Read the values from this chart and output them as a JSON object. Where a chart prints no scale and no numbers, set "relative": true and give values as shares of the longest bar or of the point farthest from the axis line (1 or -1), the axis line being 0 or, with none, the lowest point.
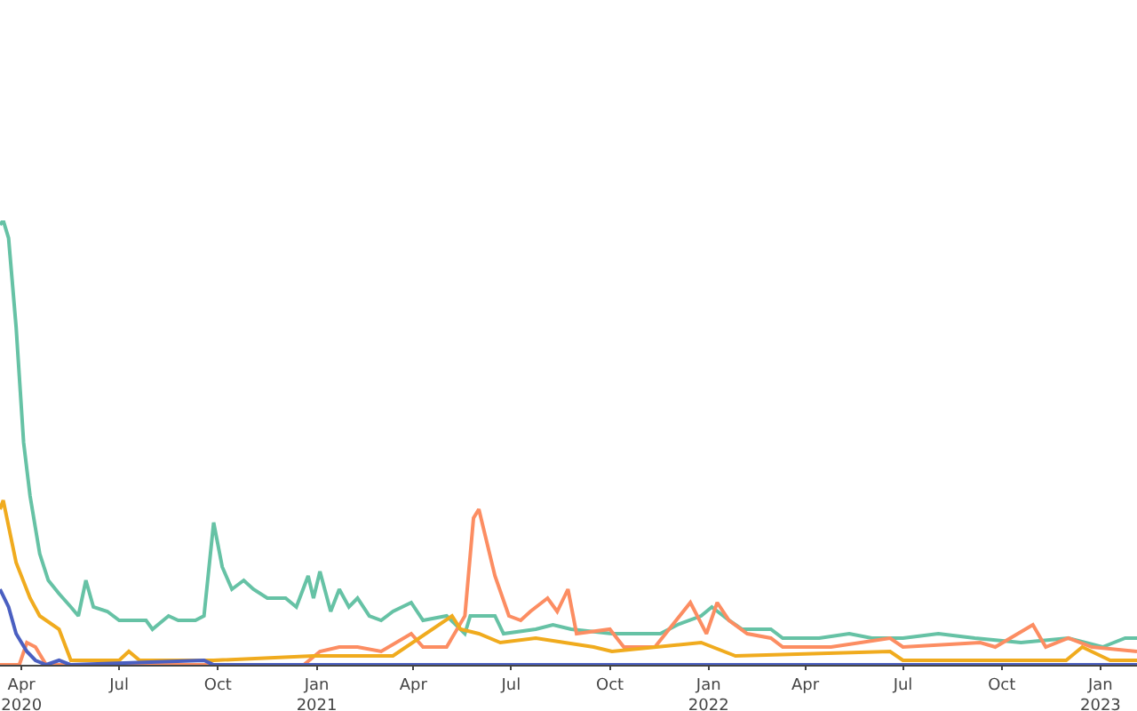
{
  "chart_data": {
    "type": "line",
    "relative": true,
    "xlim": [
      "2020-03-12",
      "2023-02-04"
    ],
    "xticks": [
      {
        "value": "2020-04-01",
        "label": "Apr\n2020"
      },
      {
        "value": "2020-07-01",
        "label": "Jul"
      },
      {
        "value": "2020-10-01",
        "label": "Oct"
      },
      {
        "value": "2021-01-01",
        "label": "Jan\n2021"
      },
      {
        "value": "2021-04-01",
        "label": "Apr"
      },
      {
        "value": "2021-07-01",
        "label": "Jul"
      },
      {
        "value": "2021-10-01",
        "label": "Oct"
      },
      {
        "value": "2022-01-01",
        "label": "Jan\n2022"
      },
      {
        "value": "2022-04-01",
        "label": "Apr"
      },
      {
        "value": "2022-07-01",
        "label": "Jul"
      },
      {
        "value": "2022-10-01",
        "label": "Oct"
      },
      {
        "value": "2023-01-01",
        "label": "Jan\n2023"
      }
    ],
    "series": [
      {
        "color": "#66c2a5",
        "x": [
          "2020-03-12",
          "2020-03-15",
          "2020-03-20",
          "2020-03-27",
          "2020-04-03",
          "2020-04-09",
          "2020-04-18",
          "2020-04-26",
          "2020-05-06",
          "2020-05-17",
          "2020-05-24",
          "2020-05-31",
          "2020-06-07",
          "2020-06-20",
          "2020-07-01",
          "2020-07-14",
          "2020-07-26",
          "2020-08-01",
          "2020-08-16",
          "2020-08-25",
          "2020-09-10",
          "2020-09-18",
          "2020-09-27",
          "2020-10-05",
          "2020-10-14",
          "2020-10-25",
          "2020-11-03",
          "2020-11-16",
          "2020-12-03",
          "2020-12-13",
          "2020-12-24",
          "2020-12-29",
          "2021-01-04",
          "2021-01-14",
          "2021-01-22",
          "2021-01-31",
          "2021-02-08",
          "2021-02-19",
          "2021-03-02",
          "2021-03-13",
          "2021-03-30",
          "2021-04-10",
          "2021-05-02",
          "2021-05-19",
          "2021-05-24",
          "2021-06-16",
          "2021-06-24",
          "2021-07-24",
          "2021-08-09",
          "2021-08-26",
          "2021-10-03",
          "2021-11-17",
          "2021-12-03",
          "2021-12-25",
          "2022-01-04",
          "2022-01-20",
          "2022-02-01",
          "2022-02-28",
          "2022-03-11",
          "2022-03-28",
          "2022-04-14",
          "2022-05-12",
          "2022-06-02",
          "2022-07-01",
          "2022-08-03",
          "2022-09-06",
          "2022-10-19",
          "2022-12-02",
          "2023-01-03",
          "2023-01-24",
          "2023-02-04"
        ],
        "values": [
          0.99,
          1,
          0.96,
          0.76,
          0.5,
          0.38,
          0.25,
          0.19,
          0.16,
          0.13,
          0.11,
          0.19,
          0.13,
          0.12,
          0.1,
          0.1,
          0.1,
          0.08,
          0.11,
          0.1,
          0.1,
          0.11,
          0.32,
          0.22,
          0.17,
          0.19,
          0.17,
          0.15,
          0.15,
          0.13,
          0.2,
          0.15,
          0.21,
          0.12,
          0.17,
          0.13,
          0.15,
          0.11,
          0.1,
          0.12,
          0.14,
          0.1,
          0.11,
          0.07,
          0.11,
          0.11,
          0.07,
          0.08,
          0.09,
          0.08,
          0.07,
          0.07,
          0.09,
          0.11,
          0.13,
          0.1,
          0.08,
          0.08,
          0.06,
          0.06,
          0.06,
          0.07,
          0.06,
          0.06,
          0.07,
          0.06,
          0.05,
          0.06,
          0.04,
          0.06,
          0.06
        ]
      },
      {
        "color": "#fc8d62",
        "x": [
          "2020-03-12",
          "2020-03-30",
          "2020-04-06",
          "2020-04-14",
          "2020-04-24",
          "2020-12-20",
          "2021-01-04",
          "2021-01-22",
          "2021-02-08",
          "2021-03-02",
          "2021-03-30",
          "2021-04-10",
          "2021-05-02",
          "2021-05-19",
          "2021-05-27",
          "2021-06-01",
          "2021-06-16",
          "2021-06-29",
          "2021-07-10",
          "2021-07-19",
          "2021-08-04",
          "2021-08-13",
          "2021-08-23",
          "2021-08-31",
          "2021-10-01",
          "2021-10-14",
          "2021-11-12",
          "2021-12-15",
          "2021-12-30",
          "2022-01-09",
          "2022-01-20",
          "2022-02-06",
          "2022-02-28",
          "2022-03-11",
          "2022-04-25",
          "2022-06-19",
          "2022-07-01",
          "2022-09-11",
          "2022-09-25",
          "2022-10-30",
          "2022-11-11",
          "2022-12-02",
          "2022-12-24",
          "2023-02-04"
        ],
        "values": [
          0,
          0,
          0.05,
          0.04,
          0,
          0,
          0.03,
          0.04,
          0.04,
          0.03,
          0.07,
          0.04,
          0.04,
          0.11,
          0.33,
          0.35,
          0.2,
          0.11,
          0.1,
          0.12,
          0.15,
          0.12,
          0.17,
          0.07,
          0.08,
          0.04,
          0.04,
          0.14,
          0.07,
          0.14,
          0.1,
          0.07,
          0.06,
          0.04,
          0.04,
          0.06,
          0.04,
          0.05,
          0.04,
          0.09,
          0.04,
          0.06,
          0.04,
          0.03
        ]
      },
      {
        "color": "#f0ab1e",
        "x": [
          "2020-03-12",
          "2020-03-15",
          "2020-03-27",
          "2020-04-09",
          "2020-04-18",
          "2020-05-06",
          "2020-05-17",
          "2020-07-01",
          "2020-07-10",
          "2020-07-20",
          "2020-09-27",
          "2020-12-29",
          "2021-03-13",
          "2021-05-07",
          "2021-05-15",
          "2021-06-01",
          "2021-06-21",
          "2021-07-24",
          "2021-09-16",
          "2021-10-03",
          "2021-12-25",
          "2022-01-26",
          "2022-06-19",
          "2022-07-01",
          "2022-11-30",
          "2022-12-15",
          "2023-01-10",
          "2023-02-04"
        ],
        "values": [
          0.35,
          0.37,
          0.23,
          0.15,
          0.11,
          0.08,
          0.01,
          0.01,
          0.03,
          0.01,
          0.01,
          0.02,
          0.02,
          0.11,
          0.08,
          0.07,
          0.05,
          0.06,
          0.04,
          0.03,
          0.05,
          0.02,
          0.03,
          0.01,
          0.01,
          0.04,
          0.01,
          0.01
        ]
      },
      {
        "color": "#4a5fc1",
        "x": [
          "2020-03-12",
          "2020-03-20",
          "2020-03-27",
          "2020-04-06",
          "2020-04-14",
          "2020-04-24",
          "2020-05-06",
          "2020-05-17",
          "2020-09-18",
          "2020-09-27",
          "2023-02-04"
        ],
        "values": [
          0.17,
          0.13,
          0.07,
          0.03,
          0.01,
          0,
          0.01,
          0,
          0.01,
          0,
          0
        ]
      }
    ]
  }
}
